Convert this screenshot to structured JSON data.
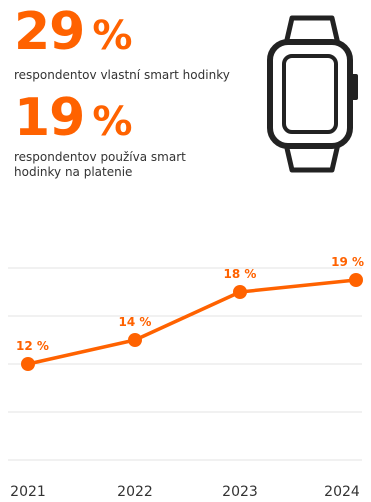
{
  "stats": [
    {
      "value": "29",
      "unit": "%",
      "label": "respondentov vlastní smart hodinky"
    },
    {
      "value": "19",
      "unit": "%",
      "label": "respondentov používa smart hodinky na platenie"
    }
  ],
  "icon": "smartwatch-icon",
  "colors": {
    "accent": "#ff6200",
    "text": "#333333",
    "grid": "#e3e3e3"
  },
  "chart_data": {
    "type": "line",
    "categories": [
      "2021",
      "2022",
      "2023",
      "2024"
    ],
    "values": [
      12,
      14,
      18,
      19
    ],
    "data_labels": [
      "12 %",
      "14 %",
      "18 %",
      "19 %"
    ],
    "title": "",
    "xlabel": "",
    "ylabel": "",
    "ylim": [
      4,
      20
    ],
    "grid": true,
    "legend": "none"
  }
}
